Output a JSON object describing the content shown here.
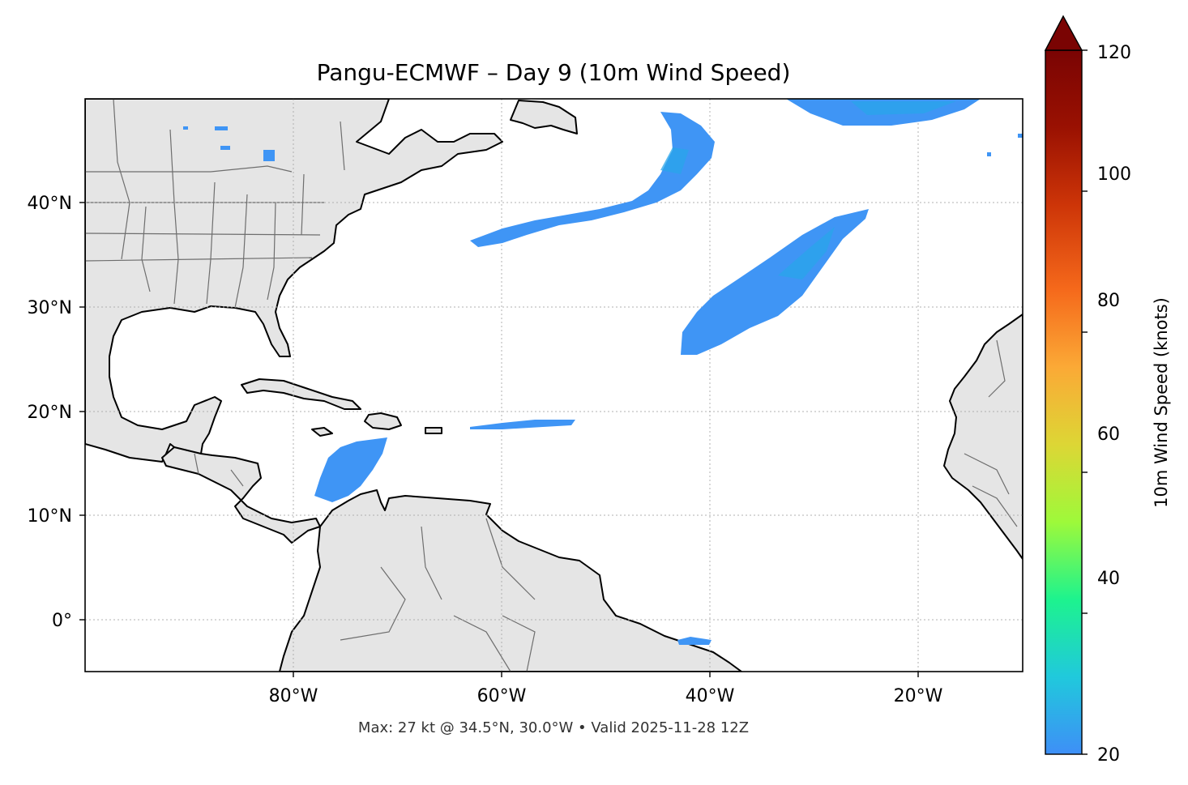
{
  "title": "Pangu-ECMWF – Day 9 (10m Wind Speed)",
  "footer": "Max: 27 kt @ 34.5°N, 30.0°W • Valid 2025-11-28 12Z",
  "map": {
    "lon_range": [
      -100,
      -10
    ],
    "lat_range": [
      -5,
      50
    ],
    "lon_ticks": [
      {
        "value": -80,
        "label": "80°W"
      },
      {
        "value": -60,
        "label": "60°W"
      },
      {
        "value": -40,
        "label": "40°W"
      },
      {
        "value": -20,
        "label": "20°W"
      }
    ],
    "lat_ticks": [
      {
        "value": 40,
        "label": "40°N"
      },
      {
        "value": 30,
        "label": "30°N"
      },
      {
        "value": 20,
        "label": "20°N"
      },
      {
        "value": 10,
        "label": "10°N"
      },
      {
        "value": 0,
        "label": "0°"
      }
    ],
    "gridlines": true,
    "land_color": "#e5e5e5",
    "ocean_color": "#ffffff",
    "wind_color": "#3f95f5",
    "wind_core_color": "#2aa6ea"
  },
  "colorbar": {
    "label": "10m Wind Speed (knots)",
    "range": [
      20,
      120
    ],
    "extend": "max",
    "ticks": [
      "20",
      "40",
      "60",
      "80",
      "100",
      "120"
    ],
    "colormap": [
      "#3e8ff7",
      "#20c9dc",
      "#1df38e",
      "#9ef93a",
      "#ddd635",
      "#fba936",
      "#f5691b",
      "#cd3508",
      "#9a1102",
      "#7a0403"
    ]
  }
}
